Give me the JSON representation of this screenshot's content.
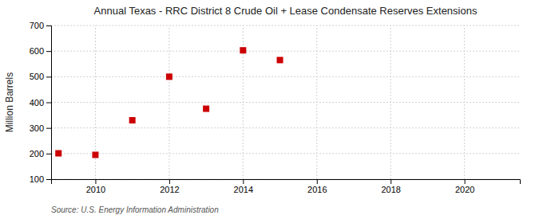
{
  "chart_data": {
    "type": "scatter",
    "title": "Annual Texas - RRC District 8 Crude Oil + Lease Condensate Reserves Extensions",
    "ylabel": "Million Barrels",
    "source": "Source: U.S. Energy Information Administration",
    "x": [
      2009,
      2010,
      2011,
      2012,
      2013,
      2014,
      2015
    ],
    "values": [
      201,
      195,
      330,
      500,
      375,
      603,
      565
    ],
    "color": "#cc0000",
    "marker": "square",
    "xlim": [
      2008.8,
      2021.5
    ],
    "ylim": [
      100,
      700
    ],
    "xticks": [
      2010,
      2012,
      2014,
      2016,
      2018,
      2020
    ],
    "yticks": [
      100,
      200,
      300,
      400,
      500,
      600,
      700
    ],
    "grid": true
  }
}
